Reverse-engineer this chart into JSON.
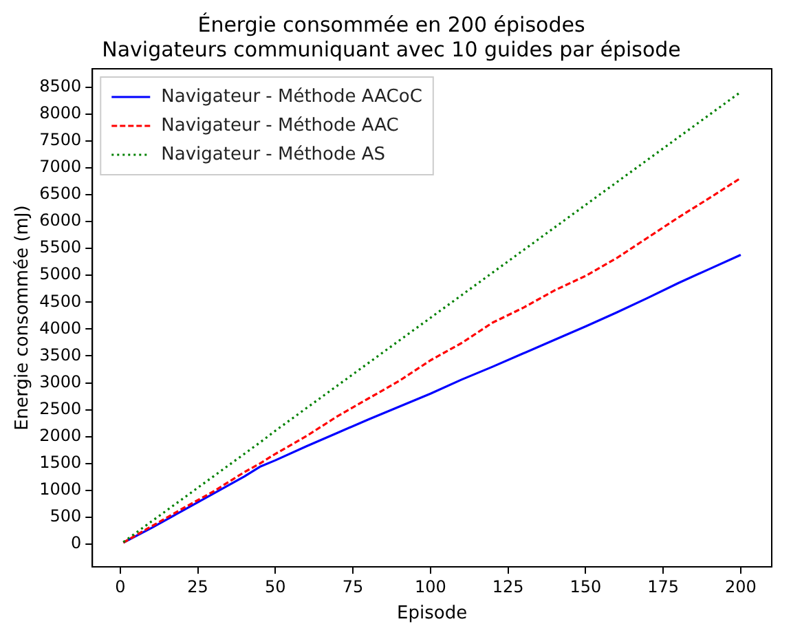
{
  "chart_data": {
    "type": "line",
    "title": "Énergie consommée en 200 épisodes\nNavigateurs communiquant avec 10 guides par épisode",
    "xlabel": "Episode",
    "ylabel": "Energie consommée (mJ)",
    "x": [
      1,
      10,
      20,
      30,
      40,
      45,
      50,
      60,
      70,
      80,
      90,
      100,
      110,
      120,
      130,
      140,
      150,
      160,
      170,
      180,
      190,
      200
    ],
    "series": [
      {
        "name": "Navigateur - Méthode AACoC",
        "color": "#0000ff",
        "line_style": "solid",
        "values": [
          30,
          300,
          620,
          940,
          1260,
          1440,
          1560,
          1820,
          2070,
          2320,
          2560,
          2800,
          3060,
          3300,
          3550,
          3800,
          4050,
          4310,
          4580,
          4860,
          5120,
          5380
        ]
      },
      {
        "name": "Navigateur - Méthode AAC",
        "color": "#ff0000",
        "line_style": "dashed",
        "values": [
          30,
          330,
          660,
          980,
          1340,
          1500,
          1680,
          2010,
          2380,
          2710,
          3040,
          3420,
          3740,
          4120,
          4400,
          4720,
          4990,
          5320,
          5700,
          6080,
          6440,
          6810
        ]
      },
      {
        "name": "Navigateur - Méthode AS",
        "color": "#008000",
        "line_style": "dotted",
        "values": [
          40,
          420,
          840,
          1260,
          1680,
          1890,
          2110,
          2530,
          2950,
          3370,
          3790,
          4210,
          4630,
          5050,
          5470,
          5890,
          6310,
          6730,
          7150,
          7570,
          7990,
          8410
        ]
      }
    ],
    "xlim": [
      -9,
      210
    ],
    "xticks": [
      0,
      25,
      50,
      75,
      100,
      125,
      150,
      175,
      200
    ],
    "ylim": [
      -421,
      8841
    ],
    "yticks": [
      0,
      500,
      1000,
      1500,
      2000,
      2500,
      3000,
      3500,
      4000,
      4500,
      5000,
      5500,
      6000,
      6500,
      7000,
      7500,
      8000,
      8500
    ],
    "grid": false,
    "legend": "top left",
    "marker": "none"
  }
}
